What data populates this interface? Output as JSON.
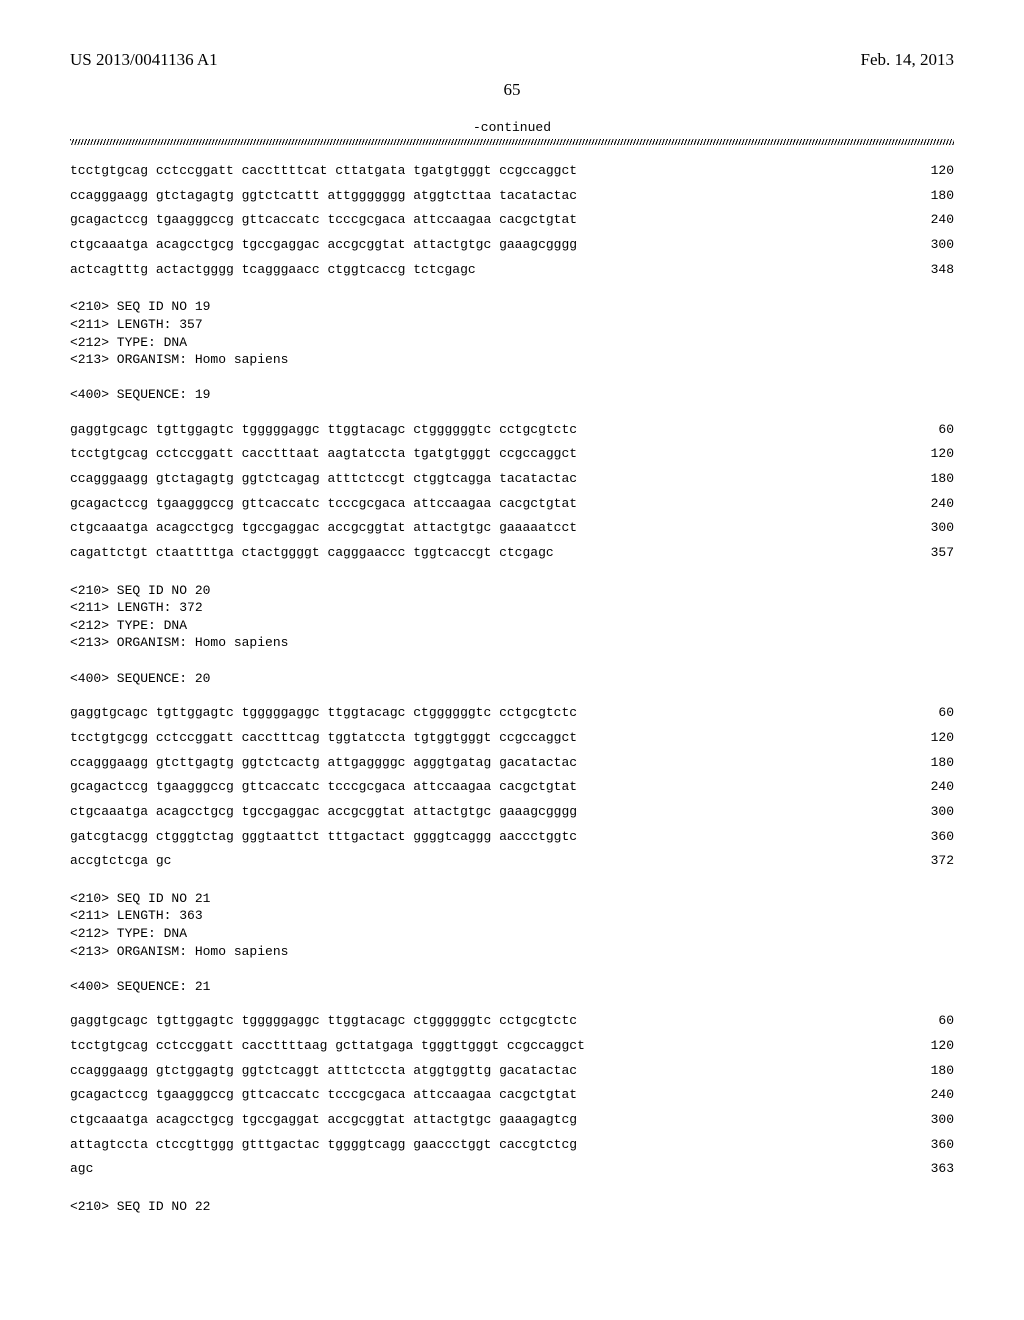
{
  "header": {
    "left": "US 2013/0041136 A1",
    "right": "Feb. 14, 2013"
  },
  "page_number": "65",
  "continued_label": "-continued",
  "blocks": [
    {
      "type": "seq_rows",
      "rows": [
        {
          "seq": "tcctgtgcag cctccggatt caccttttcat cttatgata tgatgtgggt ccgccaggct",
          "num": "120"
        },
        {
          "seq": "ccagggaagg gtctagagtg ggtctcattt attggggggg atggtcttaa tacatactac",
          "num": "180"
        },
        {
          "seq": "gcagactccg tgaagggccg gttcaccatc tcccgcgaca attccaagaa cacgctgtat",
          "num": "240"
        },
        {
          "seq": "ctgcaaatga acagcctgcg tgccgaggac accgcggtat attactgtgc gaaagcgggg",
          "num": "300"
        },
        {
          "seq": "actcagtttg actactgggg tcagggaacc ctggtcaccg tctcgagc",
          "num": "348"
        }
      ]
    },
    {
      "type": "meta",
      "lines": [
        "<210> SEQ ID NO 19",
        "<211> LENGTH: 357",
        "<212> TYPE: DNA",
        "<213> ORGANISM: Homo sapiens",
        "",
        "<400> SEQUENCE: 19"
      ]
    },
    {
      "type": "seq_rows",
      "rows": [
        {
          "seq": "gaggtgcagc tgttggagtc tgggggaggc ttggtacagc ctggggggtc cctgcgtctc",
          "num": "60"
        },
        {
          "seq": "tcctgtgcag cctccggatt cacctttaat aagtatccta tgatgtgggt ccgccaggct",
          "num": "120"
        },
        {
          "seq": "ccagggaagg gtctagagtg ggtctcagag atttctccgt ctggtcagga tacatactac",
          "num": "180"
        },
        {
          "seq": "gcagactccg tgaagggccg gttcaccatc tcccgcgaca attccaagaa cacgctgtat",
          "num": "240"
        },
        {
          "seq": "ctgcaaatga acagcctgcg tgccgaggac accgcggtat attactgtgc gaaaaatcct",
          "num": "300"
        },
        {
          "seq": "cagattctgt ctaattttga ctactggggt cagggaaccc tggtcaccgt ctcgagc",
          "num": "357"
        }
      ]
    },
    {
      "type": "meta",
      "lines": [
        "<210> SEQ ID NO 20",
        "<211> LENGTH: 372",
        "<212> TYPE: DNA",
        "<213> ORGANISM: Homo sapiens",
        "",
        "<400> SEQUENCE: 20"
      ]
    },
    {
      "type": "seq_rows",
      "rows": [
        {
          "seq": "gaggtgcagc tgttggagtc tgggggaggc ttggtacagc ctggggggtc cctgcgtctc",
          "num": "60"
        },
        {
          "seq": "tcctgtgcgg cctccggatt cacctttcag tggtatccta tgtggtgggt ccgccaggct",
          "num": "120"
        },
        {
          "seq": "ccagggaagg gtcttgagtg ggtctcactg attgaggggc agggtgatag gacatactac",
          "num": "180"
        },
        {
          "seq": "gcagactccg tgaagggccg gttcaccatc tcccgcgaca attccaagaa cacgctgtat",
          "num": "240"
        },
        {
          "seq": "ctgcaaatga acagcctgcg tgccgaggac accgcggtat attactgtgc gaaagcgggg",
          "num": "300"
        },
        {
          "seq": "gatcgtacgg ctgggtctag gggtaattct tttgactact ggggtcaggg aaccctggtc",
          "num": "360"
        },
        {
          "seq": "accgtctcga gc",
          "num": "372"
        }
      ]
    },
    {
      "type": "meta",
      "lines": [
        "<210> SEQ ID NO 21",
        "<211> LENGTH: 363",
        "<212> TYPE: DNA",
        "<213> ORGANISM: Homo sapiens",
        "",
        "<400> SEQUENCE: 21"
      ]
    },
    {
      "type": "seq_rows",
      "rows": [
        {
          "seq": "gaggtgcagc tgttggagtc tgggggaggc ttggtacagc ctggggggtc cctgcgtctc",
          "num": "60"
        },
        {
          "seq": "tcctgtgcag cctccggatt caccttttaag gcttatgaga tgggttgggt ccgccaggct",
          "num": "120"
        },
        {
          "seq": "ccagggaagg gtctggagtg ggtctcaggt atttctccta atggtggttg gacatactac",
          "num": "180"
        },
        {
          "seq": "gcagactccg tgaagggccg gttcaccatc tcccgcgaca attccaagaa cacgctgtat",
          "num": "240"
        },
        {
          "seq": "ctgcaaatga acagcctgcg tgccgaggat accgcggtat attactgtgc gaaagagtcg",
          "num": "300"
        },
        {
          "seq": "attagtccta ctccgttggg gtttgactac tggggtcagg gaaccctggt caccgtctcg",
          "num": "360"
        },
        {
          "seq": "agc",
          "num": "363"
        }
      ]
    },
    {
      "type": "meta",
      "lines": [
        "<210> SEQ ID NO 22"
      ]
    }
  ],
  "style": {
    "background_color": "#ffffff",
    "text_color": "#000000",
    "mono_font": "Courier New",
    "serif_font": "Times New Roman",
    "header_fontsize": 17,
    "seq_fontsize": 13
  }
}
